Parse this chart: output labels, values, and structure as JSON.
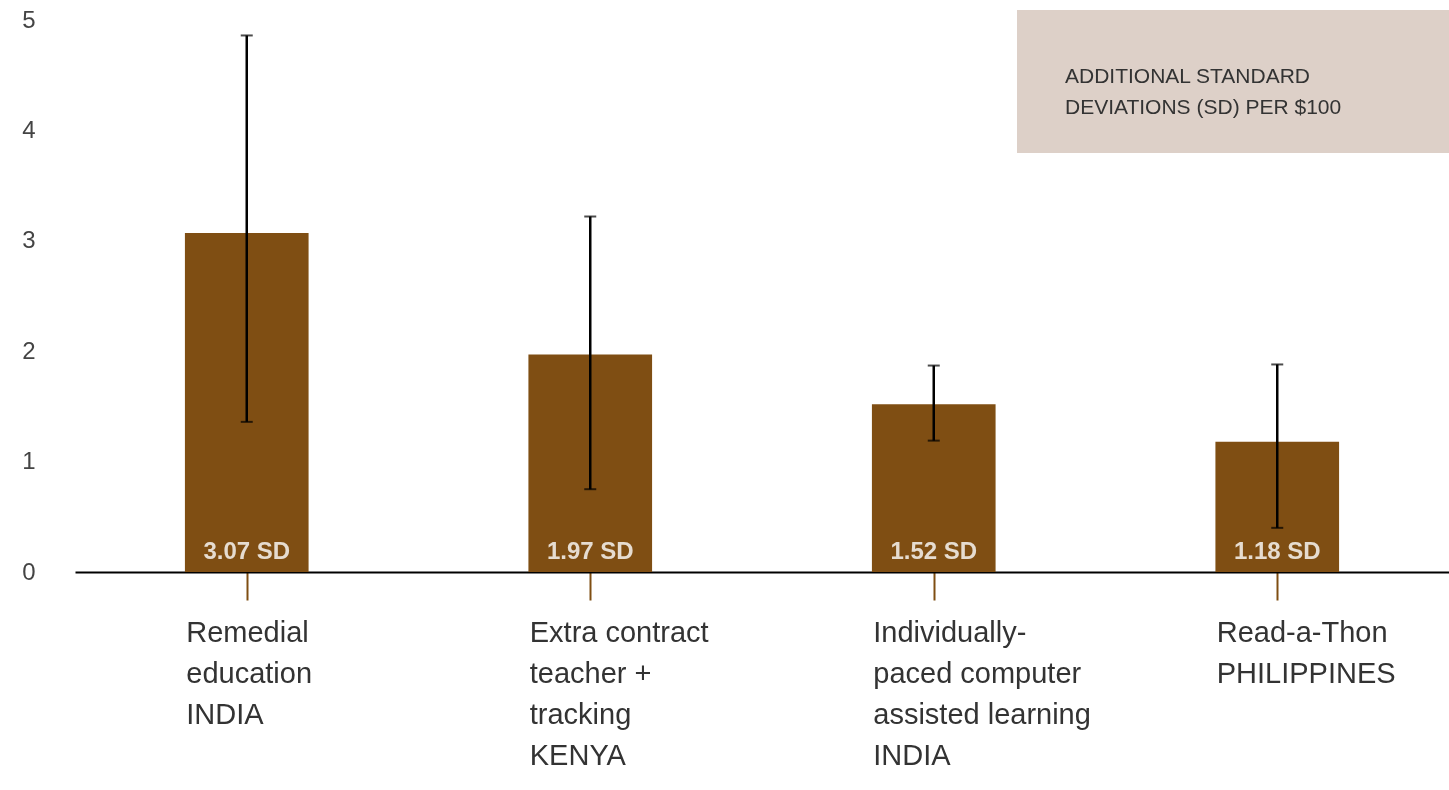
{
  "chart_data": {
    "type": "bar",
    "ylabel": "ADDITIONAL STANDARD\nDEVIATIONS (SD) PER $100",
    "categories": [
      "Remedial\neducation\nINDIA",
      "Extra contract\nteacher +\ntracking\nKENYA",
      "Individually-\npaced computer\nassisted learning\nINDIA",
      "Read-a-Thon\nPHILIPPINES"
    ],
    "values": [
      3.07,
      1.97,
      1.52,
      1.18
    ],
    "value_labels": [
      "3.07 SD",
      "1.97 SD",
      "1.52 SD",
      "1.18 SD"
    ],
    "errors": [
      [
        1.36,
        4.86
      ],
      [
        0.75,
        3.22
      ],
      [
        1.19,
        1.87
      ],
      [
        0.4,
        1.88
      ]
    ],
    "color": "#7f4e13",
    "ylim": [
      0,
      5
    ],
    "yticks": [
      0,
      1,
      2,
      3,
      4,
      5
    ],
    "grid": false
  }
}
